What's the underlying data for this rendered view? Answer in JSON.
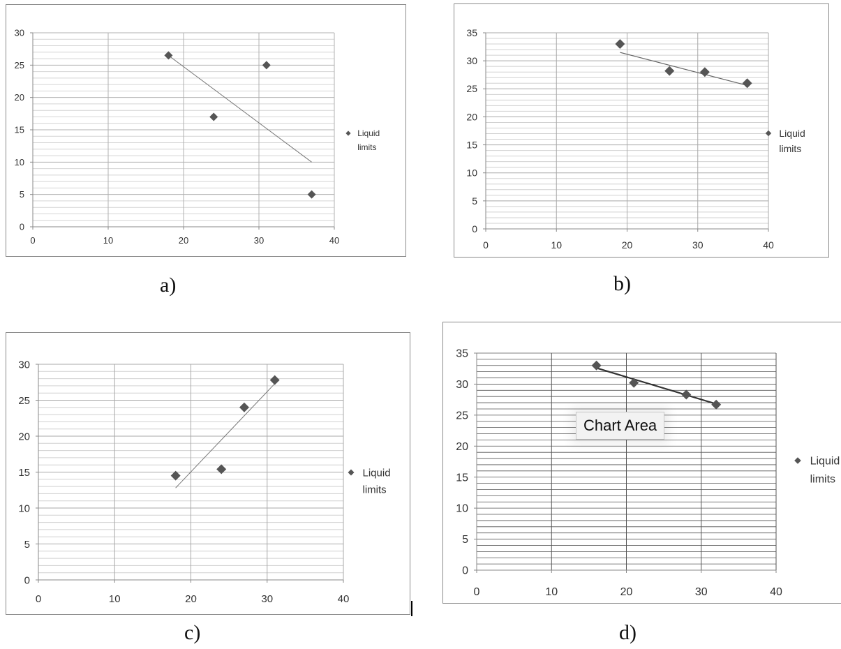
{
  "captions": {
    "a": "a)",
    "b": "b)",
    "c": "c)",
    "d": "d)"
  },
  "chart_data": [
    {
      "type": "scatter",
      "title": "",
      "xlabel": "",
      "ylabel": "",
      "xlim": [
        0,
        40
      ],
      "ylim": [
        0,
        30
      ],
      "x_ticks": [
        "0",
        "10",
        "20",
        "30",
        "40"
      ],
      "y_ticks": [
        "0",
        "5",
        "10",
        "15",
        "20",
        "25",
        "30"
      ],
      "series": [
        {
          "name": "Liquid limits",
          "x": [
            18,
            24,
            31,
            37
          ],
          "y": [
            26.5,
            17,
            25,
            5
          ]
        }
      ],
      "trendline": {
        "x": [
          18,
          37
        ],
        "y": [
          26.5,
          10
        ]
      },
      "legend": {
        "labels": [
          "Liquid",
          "limits"
        ],
        "position": "right"
      },
      "grid": true,
      "marker_color": "#555555"
    },
    {
      "type": "scatter",
      "title": "",
      "xlabel": "",
      "ylabel": "",
      "xlim": [
        0,
        40
      ],
      "ylim": [
        0,
        35
      ],
      "x_ticks": [
        "0",
        "10",
        "20",
        "30",
        "40"
      ],
      "y_ticks": [
        "0",
        "5",
        "10",
        "15",
        "20",
        "25",
        "30",
        "35"
      ],
      "series": [
        {
          "name": "Liquid limits",
          "x": [
            19,
            26,
            31,
            37
          ],
          "y": [
            33,
            28.2,
            28,
            26
          ]
        }
      ],
      "trendline": {
        "x": [
          19,
          37
        ],
        "y": [
          31.5,
          25.6
        ]
      },
      "legend": {
        "labels": [
          "Liquid",
          "limits"
        ],
        "position": "right"
      },
      "grid": true,
      "marker_color": "#555555"
    },
    {
      "type": "scatter",
      "title": "",
      "xlabel": "",
      "ylabel": "",
      "xlim": [
        0,
        40
      ],
      "ylim": [
        0,
        30
      ],
      "x_ticks": [
        "0",
        "10",
        "20",
        "30",
        "40"
      ],
      "y_ticks": [
        "0",
        "5",
        "10",
        "15",
        "20",
        "25",
        "30"
      ],
      "series": [
        {
          "name": "Liquid limits",
          "x": [
            18,
            24,
            27,
            31
          ],
          "y": [
            14.5,
            15.4,
            24,
            27.8
          ]
        }
      ],
      "trendline": {
        "x": [
          18,
          31
        ],
        "y": [
          12.8,
          27.3
        ]
      },
      "legend": {
        "labels": [
          "Liquid",
          "limits"
        ],
        "position": "right"
      },
      "grid": true,
      "marker_color": "#555555"
    },
    {
      "type": "scatter",
      "title": "",
      "xlabel": "",
      "ylabel": "",
      "xlim": [
        0,
        40
      ],
      "ylim": [
        0,
        35
      ],
      "x_ticks": [
        "0",
        "10",
        "20",
        "30",
        "40"
      ],
      "y_ticks": [
        "0",
        "5",
        "10",
        "15",
        "20",
        "25",
        "30",
        "35"
      ],
      "series": [
        {
          "name": "Liquid limits",
          "x": [
            16,
            21,
            28,
            32
          ],
          "y": [
            33,
            30.2,
            28.3,
            26.7
          ]
        }
      ],
      "trendline": {
        "x": [
          16,
          32
        ],
        "y": [
          32.6,
          26.8
        ]
      },
      "legend": {
        "labels": [
          "Liquid",
          "limits"
        ],
        "position": "right"
      },
      "grid": true,
      "marker_color": "#555555",
      "tooltip": "Chart Area"
    }
  ]
}
